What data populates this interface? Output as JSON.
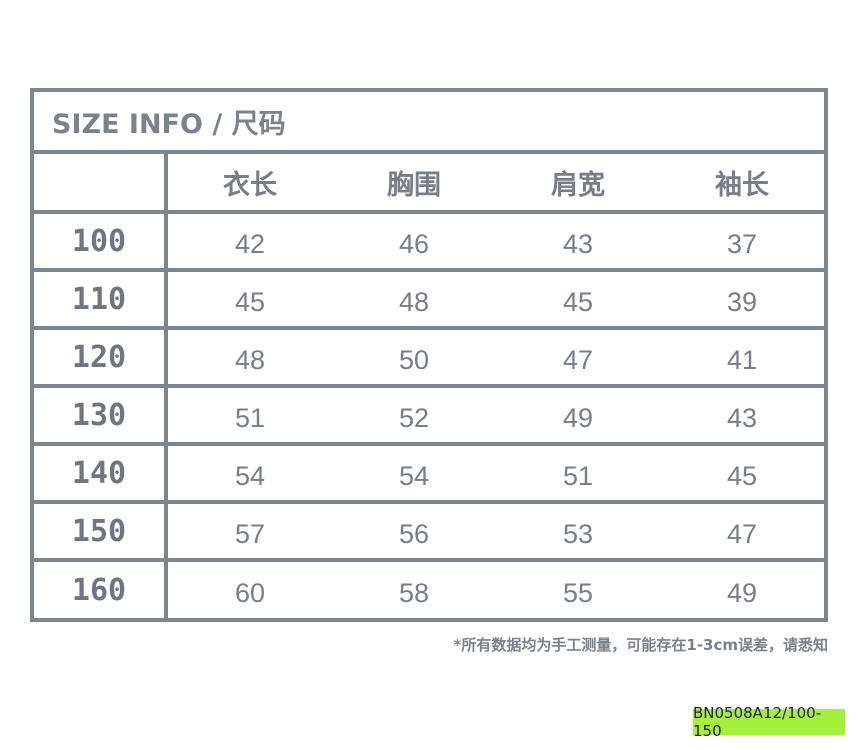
{
  "title": "SIZE INFO / 尺码",
  "table": {
    "headers": [
      "",
      "衣长",
      "胸围",
      "肩宽",
      "袖长"
    ],
    "rows": [
      {
        "size": "100",
        "values": [
          "42",
          "46",
          "43",
          "37"
        ]
      },
      {
        "size": "110",
        "values": [
          "45",
          "48",
          "45",
          "39"
        ]
      },
      {
        "size": "120",
        "values": [
          "48",
          "50",
          "47",
          "41"
        ]
      },
      {
        "size": "130",
        "values": [
          "51",
          "52",
          "49",
          "43"
        ]
      },
      {
        "size": "140",
        "values": [
          "54",
          "54",
          "51",
          "45"
        ]
      },
      {
        "size": "150",
        "values": [
          "57",
          "56",
          "53",
          "47"
        ]
      },
      {
        "size": "160",
        "values": [
          "60",
          "58",
          "55",
          "49"
        ]
      }
    ]
  },
  "note": "*所有数据均为手工测量，可能存在1-3cm误差，请悉知",
  "badge": {
    "text": "BN0508A12/100-150",
    "color": "#a5f03a"
  },
  "colors": {
    "border": "#7d8593",
    "text": "#7b818d"
  }
}
